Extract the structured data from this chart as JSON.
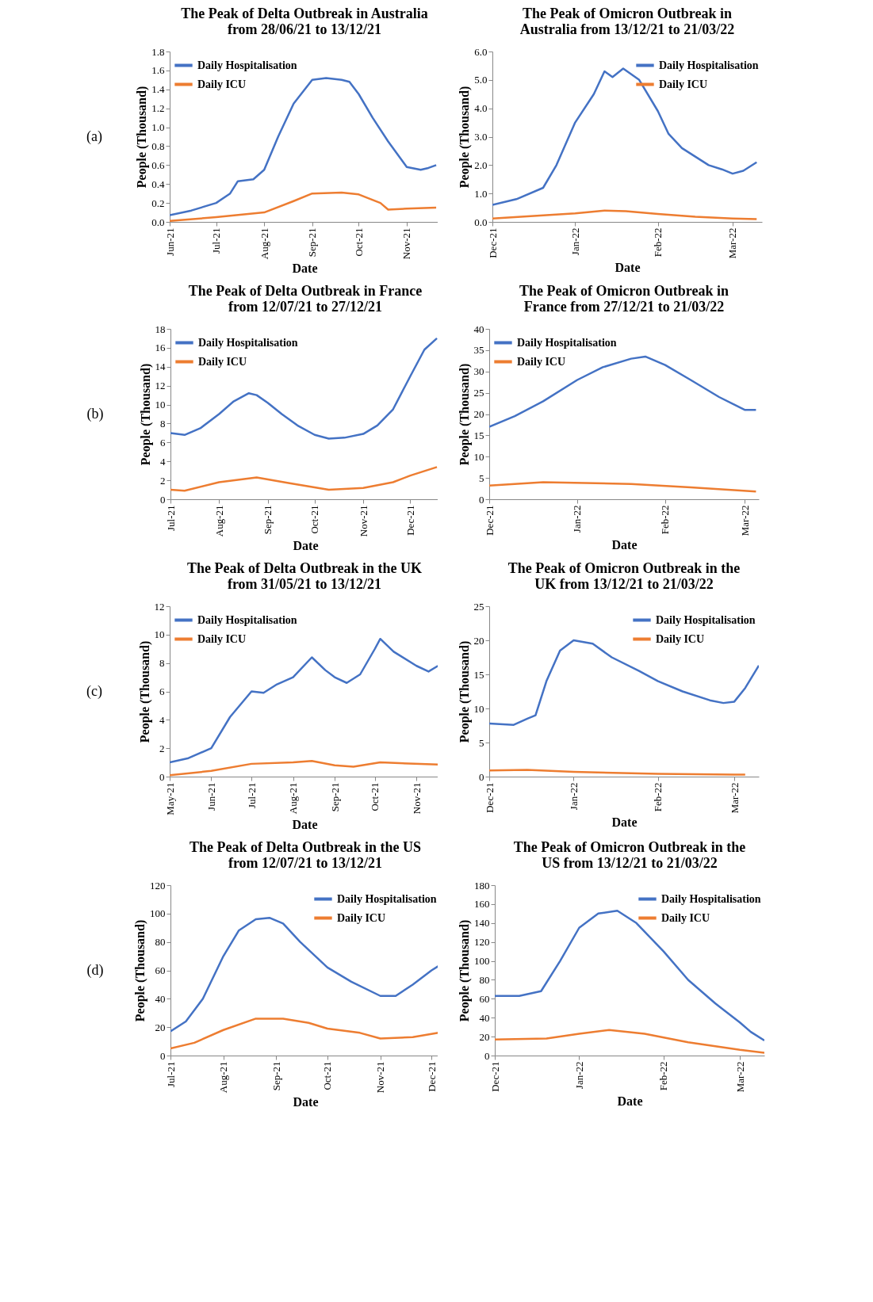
{
  "chart_data": [
    {
      "type": "line",
      "title": "The Peak of Delta Outbreak in Australia\nfrom 28/06/21 to 13/12/21",
      "xlabel": "Date",
      "ylabel": "People (Thousand)",
      "annotations": [
        "(a)"
      ],
      "legend": "top left",
      "xlim": [
        "2021-06-01",
        "2021-11-22"
      ],
      "xticks": [
        {
          "value": "2021-06-01",
          "label": "Jun-21"
        },
        {
          "value": "2021-07-01",
          "label": "Jul-21"
        },
        {
          "value": "2021-08-01",
          "label": "Aug-21"
        },
        {
          "value": "2021-09-01",
          "label": "Sep-21"
        },
        {
          "value": "2021-10-01",
          "label": "Oct-21"
        },
        {
          "value": "2021-11-01",
          "label": "Nov-21"
        }
      ],
      "ylim": [
        0,
        1.8
      ],
      "yticks": [
        {
          "value": 0,
          "label": "0.0"
        },
        {
          "value": 0.2,
          "label": "0.2"
        },
        {
          "value": 0.4,
          "label": "0.4"
        },
        {
          "value": 0.6,
          "label": "0.6"
        },
        {
          "value": 0.8,
          "label": "0.8"
        },
        {
          "value": 1,
          "label": "1.0"
        },
        {
          "value": 1.2,
          "label": "1.2"
        },
        {
          "value": 1.4,
          "label": "1.4"
        },
        {
          "value": 1.6,
          "label": "1.6"
        },
        {
          "value": 1.8,
          "label": "1.8"
        }
      ],
      "series": [
        {
          "name": "Daily Hospitalisation",
          "color": "#4472c4",
          "x": [
            "2021-06-01",
            "2021-06-15",
            "2021-07-01",
            "2021-07-10",
            "2021-07-15",
            "2021-07-25",
            "2021-08-01",
            "2021-08-10",
            "2021-08-20",
            "2021-09-01",
            "2021-09-10",
            "2021-09-20",
            "2021-09-25",
            "2021-10-01",
            "2021-10-10",
            "2021-10-20",
            "2021-11-01",
            "2021-11-10",
            "2021-11-15",
            "2021-11-20"
          ],
          "values": [
            0.07,
            0.12,
            0.2,
            0.3,
            0.43,
            0.45,
            0.55,
            0.9,
            1.25,
            1.5,
            1.52,
            1.5,
            1.48,
            1.35,
            1.1,
            0.85,
            0.58,
            0.55,
            0.57,
            0.6
          ]
        },
        {
          "name": "Daily ICU",
          "color": "#ed7d31",
          "x": [
            "2021-06-01",
            "2021-07-01",
            "2021-08-01",
            "2021-08-20",
            "2021-09-01",
            "2021-09-20",
            "2021-10-01",
            "2021-10-15",
            "2021-10-20",
            "2021-11-01",
            "2021-11-20"
          ],
          "values": [
            0.01,
            0.05,
            0.1,
            0.22,
            0.3,
            0.31,
            0.29,
            0.2,
            0.13,
            0.14,
            0.15
          ]
        }
      ]
    },
    {
      "type": "line",
      "title": "The Peak of Omicron Outbreak in\nAustralia from 13/12/21 to 21/03/22",
      "xlabel": "Date",
      "ylabel": "People (Thousand)",
      "legend": "top right",
      "xlim": [
        "2021-12-01",
        "2022-03-12"
      ],
      "xticks": [
        {
          "value": "2021-12-01",
          "label": "Dec-21"
        },
        {
          "value": "2022-01-01",
          "label": "Jan-22"
        },
        {
          "value": "2022-02-01",
          "label": "Feb-22"
        },
        {
          "value": "2022-03-01",
          "label": "Mar-22"
        }
      ],
      "ylim": [
        0,
        6
      ],
      "yticks": [
        {
          "value": 0,
          "label": "0.0"
        },
        {
          "value": 1,
          "label": "1.0"
        },
        {
          "value": 2,
          "label": "2.0"
        },
        {
          "value": 3,
          "label": "3.0"
        },
        {
          "value": 4,
          "label": "4.0"
        },
        {
          "value": 5,
          "label": "5.0"
        },
        {
          "value": 6,
          "label": "6.0"
        }
      ],
      "series": [
        {
          "name": "Daily Hospitalisation",
          "color": "#4472c4",
          "x": [
            "2021-12-01",
            "2021-12-10",
            "2021-12-20",
            "2021-12-25",
            "2022-01-01",
            "2022-01-08",
            "2022-01-12",
            "2022-01-15",
            "2022-01-19",
            "2022-01-25",
            "2022-02-01",
            "2022-02-05",
            "2022-02-10",
            "2022-02-15",
            "2022-02-20",
            "2022-02-25",
            "2022-03-01",
            "2022-03-05",
            "2022-03-10"
          ],
          "values": [
            0.6,
            0.8,
            1.2,
            2.0,
            3.5,
            4.5,
            5.3,
            5.1,
            5.4,
            5.0,
            3.9,
            3.1,
            2.6,
            2.3,
            2.0,
            1.85,
            1.7,
            1.8,
            2.1
          ]
        },
        {
          "name": "Daily ICU",
          "color": "#ed7d31",
          "x": [
            "2021-12-01",
            "2022-01-01",
            "2022-01-12",
            "2022-01-20",
            "2022-02-01",
            "2022-02-15",
            "2022-03-01",
            "2022-03-10"
          ],
          "values": [
            0.12,
            0.3,
            0.4,
            0.38,
            0.28,
            0.18,
            0.12,
            0.1
          ]
        }
      ]
    },
    {
      "type": "line",
      "title": "The Peak of Delta Outbreak in France\nfrom 12/07/21 to 27/12/21",
      "xlabel": "Date",
      "ylabel": "People (Thousand)",
      "annotations": [
        "(b)"
      ],
      "legend": "top left",
      "xlim": [
        "2021-07-01",
        "2021-12-20"
      ],
      "xticks": [
        {
          "value": "2021-07-01",
          "label": "Jul-21"
        },
        {
          "value": "2021-08-01",
          "label": "Aug-21"
        },
        {
          "value": "2021-09-01",
          "label": "Sep-21"
        },
        {
          "value": "2021-10-01",
          "label": "Oct-21"
        },
        {
          "value": "2021-11-01",
          "label": "Nov-21"
        },
        {
          "value": "2021-12-01",
          "label": "Dec-21"
        }
      ],
      "ylim": [
        0,
        18
      ],
      "yticks": [
        0,
        2,
        4,
        6,
        8,
        10,
        12,
        14,
        16,
        18
      ],
      "series": [
        {
          "name": "Daily Hospitalisation",
          "color": "#4472c4",
          "x": [
            "2021-07-01",
            "2021-07-10",
            "2021-07-20",
            "2021-08-01",
            "2021-08-10",
            "2021-08-20",
            "2021-08-25",
            "2021-09-01",
            "2021-09-10",
            "2021-09-20",
            "2021-10-01",
            "2021-10-10",
            "2021-10-20",
            "2021-11-01",
            "2021-11-10",
            "2021-11-20",
            "2021-12-01",
            "2021-12-10",
            "2021-12-18"
          ],
          "values": [
            7.0,
            6.8,
            7.5,
            9.0,
            10.3,
            11.2,
            11.0,
            10.2,
            9.0,
            7.8,
            6.8,
            6.4,
            6.5,
            6.9,
            7.8,
            9.5,
            13,
            15.8,
            17
          ]
        },
        {
          "name": "Daily ICU",
          "color": "#ed7d31",
          "x": [
            "2021-07-01",
            "2021-07-10",
            "2021-08-01",
            "2021-08-25",
            "2021-09-15",
            "2021-10-10",
            "2021-11-01",
            "2021-11-20",
            "2021-12-01",
            "2021-12-18"
          ],
          "values": [
            1.0,
            0.9,
            1.8,
            2.3,
            1.7,
            1.0,
            1.2,
            1.8,
            2.5,
            3.4
          ]
        }
      ]
    },
    {
      "type": "line",
      "title": "The Peak of Omicron Outbreak in\nFrance from 27/12/21 to 21/03/22",
      "xlabel": "Date",
      "ylabel": "People (Thousand)",
      "legend": "top left",
      "xlim": [
        "2021-12-01",
        "2022-03-06"
      ],
      "xticks": [
        {
          "value": "2021-12-01",
          "label": "Dec-21"
        },
        {
          "value": "2022-01-01",
          "label": "Jan-22"
        },
        {
          "value": "2022-02-01",
          "label": "Feb-22"
        },
        {
          "value": "2022-03-01",
          "label": "Mar-22"
        }
      ],
      "ylim": [
        0,
        40
      ],
      "yticks": [
        0,
        5,
        10,
        15,
        20,
        25,
        30,
        35,
        40
      ],
      "series": [
        {
          "name": "Daily Hospitalisation",
          "color": "#4472c4",
          "x": [
            "2021-12-01",
            "2021-12-10",
            "2021-12-20",
            "2022-01-01",
            "2022-01-10",
            "2022-01-20",
            "2022-01-25",
            "2022-02-01",
            "2022-02-10",
            "2022-02-20",
            "2022-03-01",
            "2022-03-05"
          ],
          "values": [
            17,
            19.5,
            23,
            28,
            31,
            33,
            33.5,
            31.5,
            28,
            24,
            21,
            21
          ]
        },
        {
          "name": "Daily ICU",
          "color": "#ed7d31",
          "x": [
            "2021-12-01",
            "2021-12-20",
            "2022-01-20",
            "2022-02-10",
            "2022-03-05"
          ],
          "values": [
            3.2,
            4,
            3.6,
            2.8,
            1.8
          ]
        }
      ]
    },
    {
      "type": "line",
      "title": "The Peak of Delta Outbreak in the UK\nfrom 31/05/21 to 13/12/21",
      "xlabel": "Date",
      "ylabel": "People (Thousand)",
      "annotations": [
        "(c)"
      ],
      "legend": "top left",
      "xlim": [
        "2021-05-01",
        "2021-11-18"
      ],
      "xticks": [
        {
          "value": "2021-05-01",
          "label": "May-21"
        },
        {
          "value": "2021-06-01",
          "label": "Jun-21"
        },
        {
          "value": "2021-07-01",
          "label": "Jul-21"
        },
        {
          "value": "2021-08-01",
          "label": "Aug-21"
        },
        {
          "value": "2021-09-01",
          "label": "Sep-21"
        },
        {
          "value": "2021-10-01",
          "label": "Oct-21"
        },
        {
          "value": "2021-11-01",
          "label": "Nov-21"
        }
      ],
      "ylim": [
        0,
        12
      ],
      "yticks": [
        0,
        2,
        4,
        6,
        8,
        10,
        12
      ],
      "series": [
        {
          "name": "Daily Hospitalisation",
          "color": "#4472c4",
          "x": [
            "2021-05-01",
            "2021-05-15",
            "2021-06-01",
            "2021-06-15",
            "2021-07-01",
            "2021-07-10",
            "2021-07-20",
            "2021-08-01",
            "2021-08-15",
            "2021-08-25",
            "2021-09-01",
            "2021-09-10",
            "2021-09-20",
            "2021-10-01",
            "2021-10-05",
            "2021-10-15",
            "2021-11-01",
            "2021-11-10",
            "2021-11-17"
          ],
          "values": [
            1.0,
            1.3,
            2.0,
            4.2,
            6.0,
            5.9,
            6.5,
            7.0,
            8.4,
            7.5,
            7.0,
            6.6,
            7.2,
            9.0,
            9.7,
            8.8,
            7.8,
            7.4,
            7.8
          ]
        },
        {
          "name": "Daily ICU",
          "color": "#ed7d31",
          "x": [
            "2021-05-01",
            "2021-06-01",
            "2021-07-01",
            "2021-08-01",
            "2021-08-15",
            "2021-09-01",
            "2021-09-15",
            "2021-10-05",
            "2021-11-17"
          ],
          "values": [
            0.1,
            0.4,
            0.9,
            1.0,
            1.1,
            0.8,
            0.7,
            1.0,
            0.85
          ]
        }
      ]
    },
    {
      "type": "line",
      "title": "The Peak of Omicron Outbreak in the\nUK from 13/12/21 to 21/03/22",
      "xlabel": "Date",
      "ylabel": "People (Thousand)",
      "legend": "top right",
      "xlim": [
        "2021-12-01",
        "2022-03-10"
      ],
      "xticks": [
        {
          "value": "2021-12-01",
          "label": "Dec-21"
        },
        {
          "value": "2022-01-01",
          "label": "Jan-22"
        },
        {
          "value": "2022-02-01",
          "label": "Feb-22"
        },
        {
          "value": "2022-03-01",
          "label": "Mar-22"
        }
      ],
      "ylim": [
        0,
        25
      ],
      "yticks": [
        0,
        5,
        10,
        15,
        20,
        25
      ],
      "series": [
        {
          "name": "Daily Hospitalisation",
          "color": "#4472c4",
          "x": [
            "2021-12-01",
            "2021-12-10",
            "2021-12-15",
            "2021-12-18",
            "2021-12-22",
            "2021-12-27",
            "2022-01-01",
            "2022-01-08",
            "2022-01-15",
            "2022-01-25",
            "2022-02-01",
            "2022-02-10",
            "2022-02-20",
            "2022-02-25",
            "2022-03-01",
            "2022-03-05",
            "2022-03-10"
          ],
          "values": [
            7.8,
            7.6,
            8.5,
            9,
            14,
            18.5,
            20,
            19.5,
            17.5,
            15.5,
            14,
            12.5,
            11.2,
            10.8,
            11,
            13,
            16.3
          ]
        },
        {
          "name": "Daily ICU",
          "color": "#ed7d31",
          "x": [
            "2021-12-01",
            "2021-12-15",
            "2022-01-01",
            "2022-02-01",
            "2022-03-01",
            "2022-03-05"
          ],
          "values": [
            0.9,
            1.0,
            0.7,
            0.4,
            0.3,
            0.3
          ]
        }
      ]
    },
    {
      "type": "line",
      "title": "The Peak of Delta Outbreak in the US\nfrom 12/07/21 to 13/12/21",
      "xlabel": "Date",
      "ylabel": "People (Thousand)",
      "annotations": [
        "(d)"
      ],
      "legend": "top right",
      "xlim": [
        "2021-07-01",
        "2021-12-06"
      ],
      "xticks": [
        {
          "value": "2021-07-01",
          "label": "Jul-21"
        },
        {
          "value": "2021-08-01",
          "label": "Aug-21"
        },
        {
          "value": "2021-09-01",
          "label": "Sep-21"
        },
        {
          "value": "2021-10-01",
          "label": "Oct-21"
        },
        {
          "value": "2021-11-01",
          "label": "Nov-21"
        },
        {
          "value": "2021-12-01",
          "label": "Dec-21"
        }
      ],
      "ylim": [
        0,
        120
      ],
      "yticks": [
        0,
        20,
        40,
        60,
        80,
        100,
        120
      ],
      "series": [
        {
          "name": "Daily Hospitalisation",
          "color": "#4472c4",
          "x": [
            "2021-07-01",
            "2021-07-10",
            "2021-07-20",
            "2021-08-01",
            "2021-08-10",
            "2021-08-20",
            "2021-08-28",
            "2021-09-05",
            "2021-09-15",
            "2021-10-01",
            "2021-10-15",
            "2021-11-01",
            "2021-11-10",
            "2021-11-20",
            "2021-12-01",
            "2021-12-05"
          ],
          "values": [
            17,
            24,
            40,
            70,
            88,
            96,
            97,
            93,
            80,
            62,
            52,
            42,
            42,
            50,
            60,
            63
          ]
        },
        {
          "name": "Daily ICU",
          "color": "#ed7d31",
          "x": [
            "2021-07-01",
            "2021-07-15",
            "2021-08-01",
            "2021-08-20",
            "2021-09-05",
            "2021-09-20",
            "2021-10-01",
            "2021-10-20",
            "2021-11-01",
            "2021-11-20",
            "2021-12-05"
          ],
          "values": [
            5,
            9,
            18,
            26,
            26,
            23,
            19,
            16,
            12,
            13,
            16
          ]
        }
      ]
    },
    {
      "type": "line",
      "title": "The Peak of Omicron Outbreak in the\nUS from 13/12/21 to 21/03/22",
      "xlabel": "Date",
      "ylabel": "People (Thousand)",
      "legend": "top right",
      "xlim": [
        "2021-12-01",
        "2022-03-10"
      ],
      "xticks": [
        {
          "value": "2021-12-01",
          "label": "Dec-21"
        },
        {
          "value": "2022-01-01",
          "label": "Jan-22"
        },
        {
          "value": "2022-02-01",
          "label": "Feb-22"
        },
        {
          "value": "2022-03-01",
          "label": "Mar-22"
        }
      ],
      "ylim": [
        0,
        180
      ],
      "yticks": [
        0,
        20,
        40,
        60,
        80,
        100,
        120,
        140,
        160,
        180
      ],
      "series": [
        {
          "name": "Daily Hospitalisation",
          "color": "#4472c4",
          "x": [
            "2021-12-01",
            "2021-12-10",
            "2021-12-18",
            "2021-12-25",
            "2022-01-01",
            "2022-01-08",
            "2022-01-15",
            "2022-01-22",
            "2022-02-01",
            "2022-02-10",
            "2022-02-20",
            "2022-03-01",
            "2022-03-05",
            "2022-03-10"
          ],
          "values": [
            63,
            63,
            68,
            100,
            135,
            150,
            153,
            140,
            110,
            80,
            55,
            35,
            25,
            16
          ]
        },
        {
          "name": "Daily ICU",
          "color": "#ed7d31",
          "x": [
            "2021-12-01",
            "2021-12-20",
            "2022-01-01",
            "2022-01-12",
            "2022-01-25",
            "2022-02-10",
            "2022-03-01",
            "2022-03-10"
          ],
          "values": [
            17,
            18,
            23,
            27,
            23,
            14,
            6,
            3
          ]
        }
      ]
    }
  ]
}
